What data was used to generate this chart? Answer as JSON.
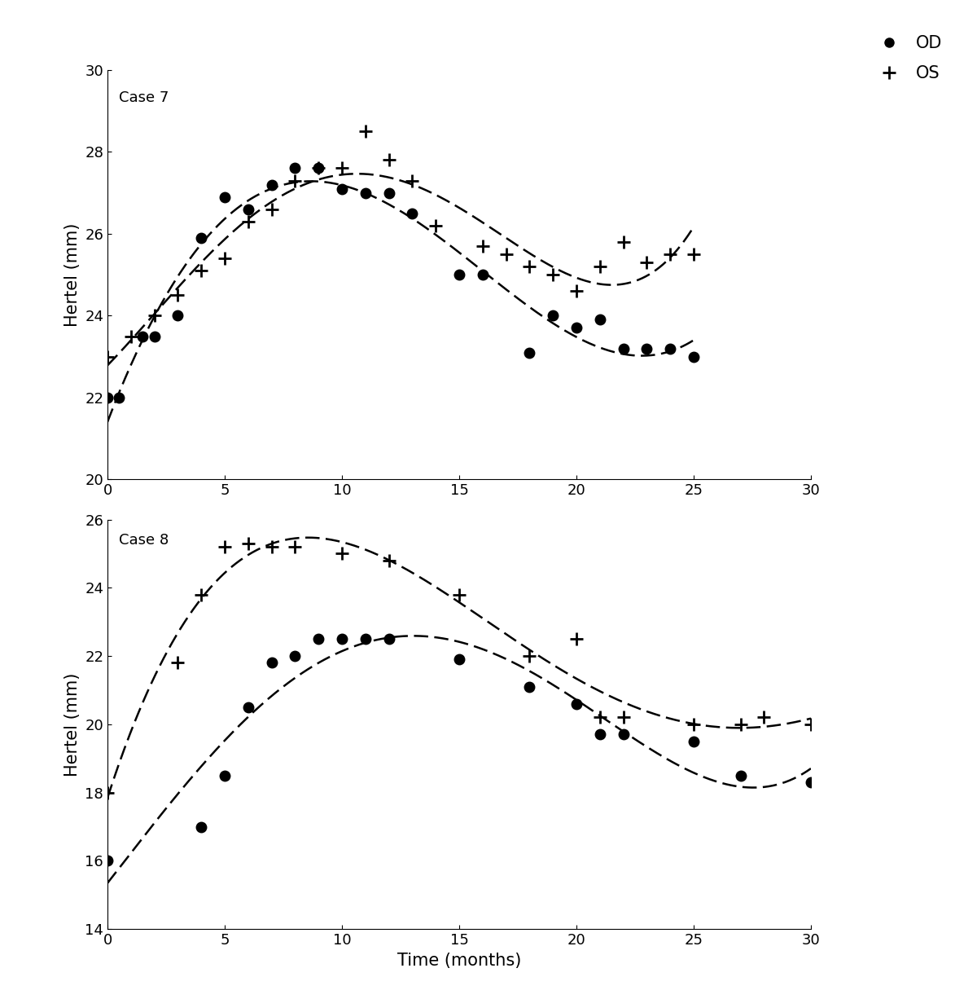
{
  "case7": {
    "label": "Case 7",
    "OD_x": [
      0,
      0.5,
      1.5,
      2,
      3,
      4,
      5,
      6,
      7,
      8,
      9,
      10,
      11,
      12,
      13,
      15,
      16,
      18,
      19,
      20,
      21,
      22,
      23,
      24,
      25
    ],
    "OD_y": [
      22.0,
      22.0,
      23.5,
      23.5,
      24.0,
      25.9,
      26.9,
      26.6,
      27.2,
      27.6,
      27.6,
      27.1,
      27.0,
      27.0,
      26.5,
      25.0,
      25.0,
      23.1,
      24.0,
      23.7,
      23.9,
      23.2,
      23.2,
      23.2,
      23.0
    ],
    "OS_x": [
      0,
      1,
      2,
      3,
      4,
      5,
      6,
      7,
      8,
      9,
      10,
      11,
      12,
      13,
      14,
      16,
      17,
      18,
      19,
      20,
      21,
      22,
      23,
      24,
      25
    ],
    "OS_y": [
      23.0,
      23.5,
      24.0,
      24.5,
      25.1,
      25.4,
      26.3,
      26.6,
      27.3,
      27.6,
      27.6,
      28.5,
      27.8,
      27.3,
      26.2,
      25.7,
      25.5,
      25.2,
      25.0,
      24.6,
      25.2,
      25.8,
      25.3,
      25.5,
      25.5
    ],
    "ylim": [
      20,
      30
    ],
    "yticks": [
      20,
      22,
      24,
      26,
      28,
      30
    ],
    "xlim": [
      0,
      30
    ],
    "xticks": [
      0,
      5,
      10,
      15,
      20,
      25,
      30
    ]
  },
  "case8": {
    "label": "Case 8",
    "OD_x": [
      0,
      4,
      5,
      6,
      7,
      8,
      9,
      10,
      11,
      12,
      15,
      18,
      20,
      21,
      22,
      25,
      27,
      30
    ],
    "OD_y": [
      16.0,
      17.0,
      18.5,
      20.5,
      21.8,
      22.0,
      22.5,
      22.5,
      22.5,
      22.5,
      21.9,
      21.1,
      20.6,
      19.7,
      19.7,
      19.5,
      18.5,
      18.3
    ],
    "OS_x": [
      0,
      3,
      4,
      5,
      6,
      7,
      8,
      10,
      12,
      15,
      18,
      20,
      21,
      22,
      25,
      27,
      28,
      30
    ],
    "OS_y": [
      18.0,
      21.8,
      23.8,
      25.2,
      25.3,
      25.2,
      25.2,
      25.0,
      24.8,
      23.8,
      22.0,
      22.5,
      20.2,
      20.2,
      20.0,
      20.0,
      20.2,
      20.0
    ],
    "ylim": [
      14,
      26
    ],
    "yticks": [
      14,
      16,
      18,
      20,
      22,
      24,
      26
    ],
    "xlim": [
      0,
      30
    ],
    "xticks": [
      0,
      5,
      10,
      15,
      20,
      25,
      30
    ]
  },
  "ylabel": "Hertel (mm)",
  "xlabel": "Time (months)",
  "legend_OD": "OD",
  "legend_OS": "OS"
}
